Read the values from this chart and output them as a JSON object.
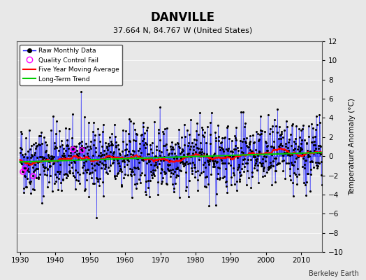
{
  "title": "DANVILLE",
  "subtitle": "37.664 N, 84.767 W (United States)",
  "ylabel": "Temperature Anomaly (°C)",
  "credit": "Berkeley Earth",
  "year_start": 1930,
  "year_end": 2015,
  "ylim": [
    -10,
    12
  ],
  "yticks": [
    -10,
    -8,
    -6,
    -4,
    -2,
    0,
    2,
    4,
    6,
    8,
    10,
    12
  ],
  "xticks": [
    1930,
    1940,
    1950,
    1960,
    1970,
    1980,
    1990,
    2000,
    2010
  ],
  "bg_color": "#e8e8e8",
  "plot_bg_color": "#e8e8e8",
  "raw_line_color": "#0000ff",
  "raw_dot_color": "#000000",
  "qc_color": "#ff00ff",
  "moving_avg_color": "#ff0000",
  "trend_color": "#00cc00",
  "seed": 42
}
